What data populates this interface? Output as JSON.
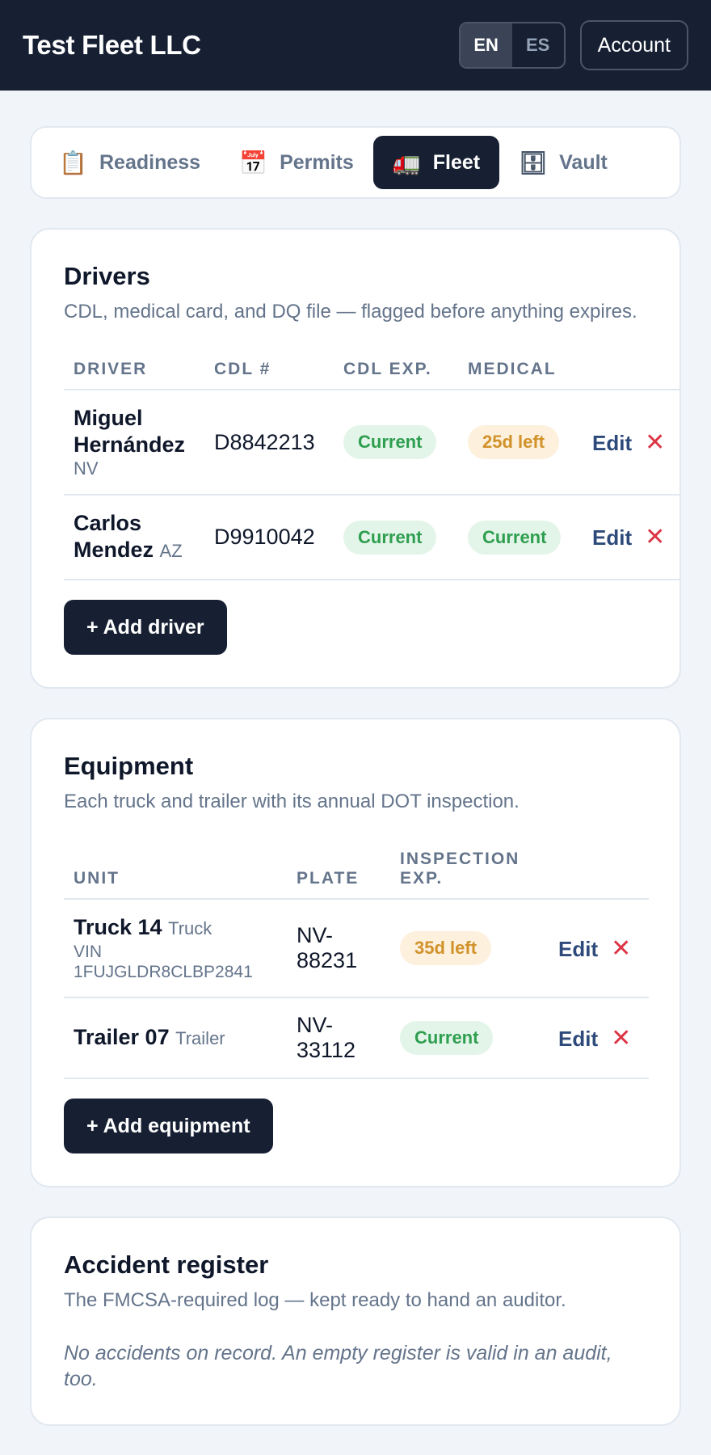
{
  "header": {
    "title": "Test Fleet LLC",
    "lang_en": "EN",
    "lang_es": "ES",
    "account_label": "Account"
  },
  "tabs": [
    {
      "label": "Readiness",
      "icon": "clipboard-icon",
      "glyph": "📋"
    },
    {
      "label": "Permits",
      "icon": "calendar-icon",
      "glyph": "📅"
    },
    {
      "label": "Fleet",
      "icon": "truck-icon",
      "glyph": "🚛"
    },
    {
      "label": "Vault",
      "icon": "file-cabinet-icon",
      "glyph": "🗄"
    }
  ],
  "active_tab": "Fleet",
  "drivers": {
    "title": "Drivers",
    "subtitle": "CDL, medical card, and DQ file — flagged before anything expires.",
    "columns": [
      "DRIVER",
      "CDL #",
      "CDL EXP.",
      "MEDICAL"
    ],
    "rows": [
      {
        "name": "Miguel Hernández",
        "state": "NV",
        "cdl": "D8842213",
        "cdl_exp": "Current",
        "medical": "25d left"
      },
      {
        "name": "Carlos Mendez",
        "state": "AZ",
        "cdl": "D9910042",
        "cdl_exp": "Current",
        "medical": "Current"
      }
    ],
    "edit_label": "Edit",
    "add_label": "+ Add driver"
  },
  "equipment": {
    "title": "Equipment",
    "subtitle": "Each truck and trailer with its annual DOT inspection.",
    "columns": [
      "UNIT",
      "PLATE",
      "INSPECTION EXP."
    ],
    "rows": [
      {
        "unit": "Truck 14",
        "type": "Truck",
        "vin": "VIN 1FUJGLDR8CLBP2841",
        "plate": "NV-88231",
        "inspection": "35d left"
      },
      {
        "unit": "Trailer 07",
        "type": "Trailer",
        "vin": "",
        "plate": "NV-33112",
        "inspection": "Current"
      }
    ],
    "edit_label": "Edit",
    "add_label": "+ Add equipment"
  },
  "accidents": {
    "title": "Accident register",
    "subtitle": "The FMCSA-required log — kept ready to hand an auditor.",
    "empty_text": "No accidents on record. An empty register is valid in an audit, too."
  },
  "colors": {
    "navy": "#172033",
    "ok_bg": "#e3f5e9",
    "ok_fg": "#2e9e4f",
    "warn_bg": "#fdf0dc",
    "warn_fg": "#d1922a",
    "danger": "#dc3545"
  }
}
